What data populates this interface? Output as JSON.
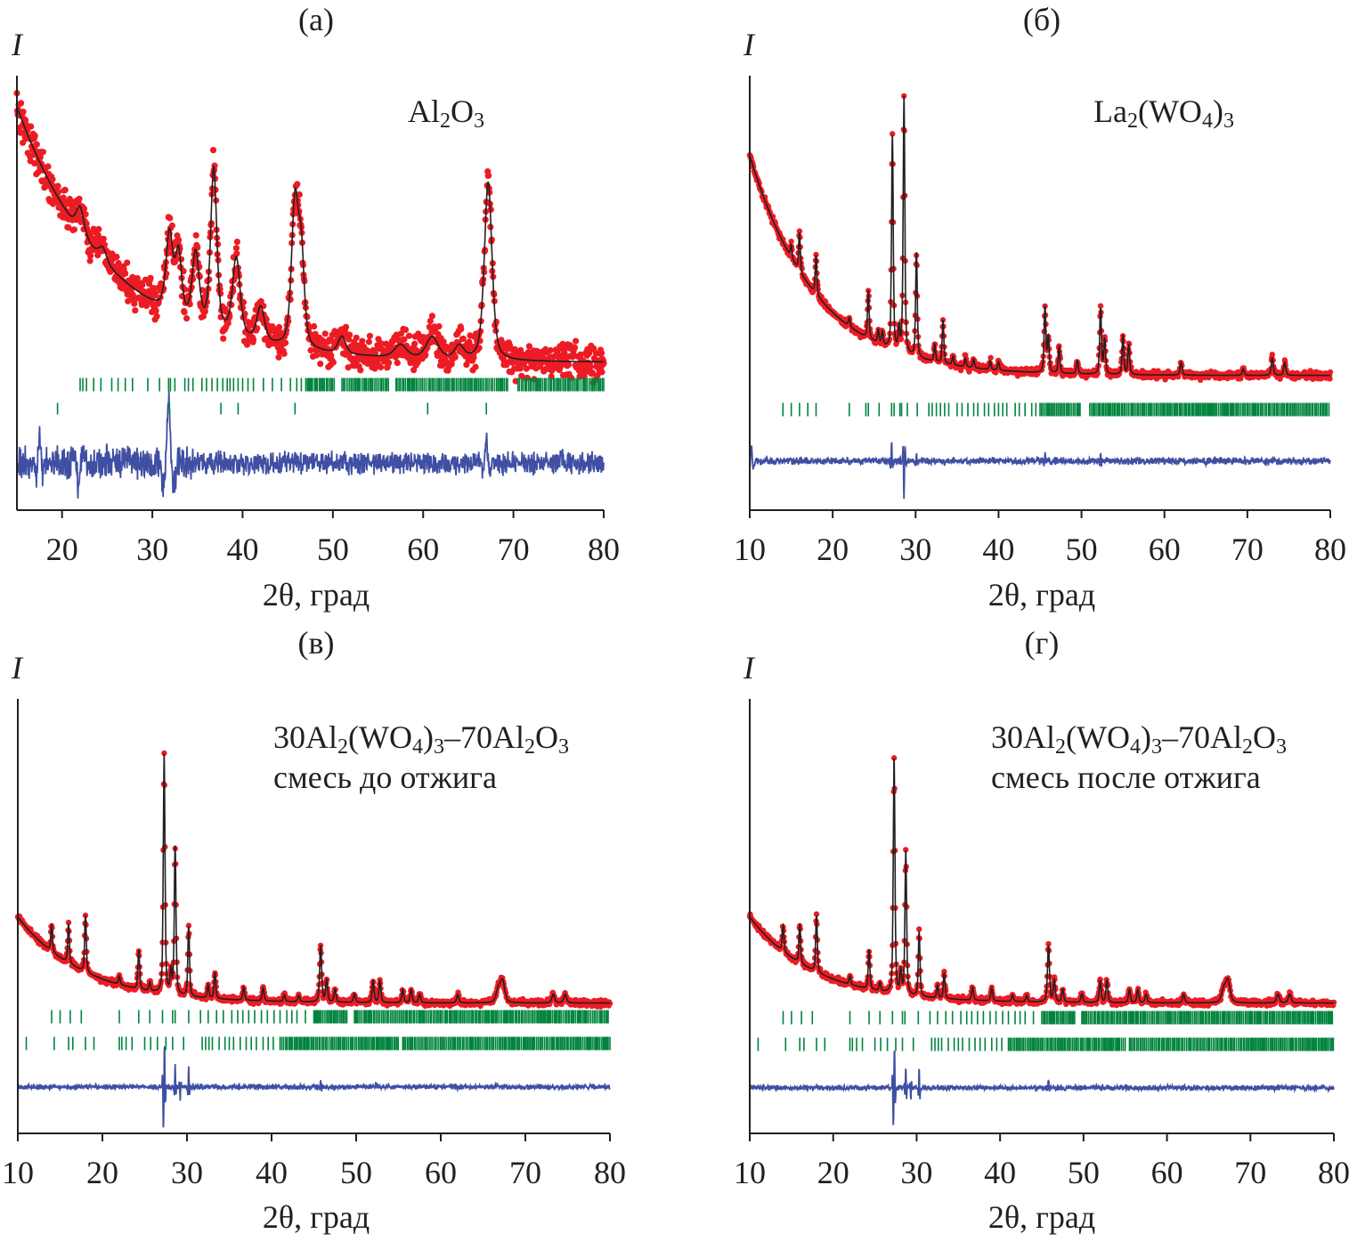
{
  "chart_data": [
    {
      "type": "line",
      "panel": "(а)",
      "title": "(а)",
      "ylabel": "I",
      "xlabel": "2θ, град",
      "label_lines": [
        "Al2O3"
      ],
      "xlim": [
        15,
        80
      ],
      "xticks": [
        20,
        30,
        40,
        50,
        60,
        70,
        80
      ],
      "background": {
        "c": 34,
        "a": 58.8,
        "x0": 15,
        "t": 10.3
      },
      "peaks": [
        [
          22,
          6,
          0.5
        ],
        [
          24.5,
          3,
          0.5
        ],
        [
          31.9,
          18,
          0.45
        ],
        [
          32.9,
          14,
          0.4
        ],
        [
          34.8,
          16,
          0.45
        ],
        [
          36.8,
          37,
          0.4
        ],
        [
          39.3,
          18,
          0.5
        ],
        [
          42,
          8,
          0.5
        ],
        [
          45.8,
          33,
          0.45
        ],
        [
          46.5,
          20,
          0.4
        ],
        [
          51,
          4,
          0.5
        ],
        [
          57.5,
          3,
          0.8
        ],
        [
          61,
          5,
          0.8
        ],
        [
          64,
          3,
          0.6
        ],
        [
          67.2,
          41,
          0.5
        ]
      ],
      "obs_noise": 2.4,
      "difference": {
        "baseline": 10.9,
        "noise": 1.6,
        "features": [
          [
            17.5,
            5,
            0.3
          ],
          [
            21.8,
            -5,
            0.4
          ],
          [
            31.8,
            14,
            0.45
          ],
          [
            67,
            6,
            0.3
          ]
        ]
      },
      "tick_rows": [
        {
          "positions": [
            22,
            22.3,
            22.7,
            23.5,
            24.3,
            25.5,
            26.2,
            27,
            27.8,
            29.5,
            30.8,
            31.8,
            32,
            32.5,
            33.6,
            34,
            34.5,
            35.5,
            36,
            36.6,
            37.2,
            37.8,
            38.3,
            38.6,
            39,
            39.5,
            40,
            40.6,
            41.2,
            42.3,
            43.3,
            44.3,
            45.3,
            46,
            46.5
          ],
          "dense_ranges": [
            [
              47,
              50.2
            ],
            [
              51,
              56.2
            ],
            [
              57,
              69.5
            ],
            [
              70.5,
              80
            ]
          ]
        },
        {
          "positions": [
            19.5,
            31.9,
            37.6,
            39.5,
            45.8,
            60.5,
            67
          ],
          "dense_ranges": []
        }
      ]
    },
    {
      "type": "line",
      "panel": "(б)",
      "title": "(б)",
      "ylabel": "I",
      "xlabel": "2θ, град",
      "label_lines": [
        "La2(WO4)3"
      ],
      "xlim": [
        10,
        80
      ],
      "xticks": [
        10,
        20,
        30,
        40,
        50,
        60,
        70,
        80
      ],
      "background": {
        "c": 31,
        "a": 50.6,
        "x0": 10,
        "t": 8
      },
      "peaks": [
        [
          15,
          3,
          0.12
        ],
        [
          16,
          9,
          0.12
        ],
        [
          18,
          9,
          0.12
        ],
        [
          22,
          2,
          0.12
        ],
        [
          24.3,
          11,
          0.12
        ],
        [
          25.5,
          3,
          0.12
        ],
        [
          26,
          3,
          0.12
        ],
        [
          27.2,
          49,
          0.12
        ],
        [
          28,
          5,
          0.12
        ],
        [
          28.6,
          59,
          0.12
        ],
        [
          30.1,
          24,
          0.12
        ],
        [
          32.3,
          4,
          0.12
        ],
        [
          33.3,
          10,
          0.12
        ],
        [
          34.5,
          2,
          0.12
        ],
        [
          36,
          2,
          0.12
        ],
        [
          37,
          2,
          0.12
        ],
        [
          39,
          2,
          0.12
        ],
        [
          40,
          2,
          0.12
        ],
        [
          45.6,
          15,
          0.13
        ],
        [
          46,
          8,
          0.13
        ],
        [
          47.3,
          6,
          0.13
        ],
        [
          49.5,
          3,
          0.13
        ],
        [
          52.3,
          15,
          0.13
        ],
        [
          52.8,
          8,
          0.13
        ],
        [
          55,
          9,
          0.13
        ],
        [
          55.7,
          7,
          0.13
        ],
        [
          62,
          3,
          0.14
        ],
        [
          69.5,
          1.5,
          0.14
        ],
        [
          73,
          4,
          0.15
        ],
        [
          74.5,
          3,
          0.15
        ]
      ],
      "obs_noise": 0.5,
      "difference": {
        "baseline": 11.3,
        "noise": 0.5,
        "features": [
          [
            10.2,
            4,
            0.2
          ],
          [
            27.1,
            4,
            0.1
          ],
          [
            28.6,
            -9,
            0.1
          ],
          [
            30.1,
            2,
            0.1
          ],
          [
            45.6,
            2,
            0.1
          ],
          [
            52.3,
            2,
            0.1
          ]
        ]
      },
      "tick_rows": [
        {
          "positions": [
            14,
            15,
            16,
            17,
            18,
            22,
            24,
            24.3,
            25.6,
            27.1,
            27.4,
            28.1,
            28.3,
            29,
            30.2,
            31.6,
            32,
            32.5,
            33,
            33.5,
            34,
            35,
            35.6,
            36.3,
            37,
            37.5,
            38.3,
            38.8,
            39.5,
            40,
            40.5,
            41,
            42,
            42.5,
            43.2,
            44,
            44.5
          ],
          "dense_ranges": [
            [
              45,
              50
            ],
            [
              51,
              80
            ]
          ]
        }
      ]
    },
    {
      "type": "line",
      "panel": "(в)",
      "title": "(в)",
      "ylabel": "I",
      "xlabel": "2θ, град",
      "label_lines": [
        "30Al2(WO4)3–70Al2O3",
        "смесь до отжига"
      ],
      "xlim": [
        10,
        80
      ],
      "xticks": [
        10,
        20,
        30,
        40,
        50,
        60,
        70,
        80
      ],
      "background": {
        "c": 30,
        "a": 19.8,
        "x0": 10,
        "t": 7.8
      },
      "peaks": [
        [
          14,
          6,
          0.12
        ],
        [
          16,
          9,
          0.12
        ],
        [
          18,
          13,
          0.12
        ],
        [
          22,
          2,
          0.12
        ],
        [
          24.3,
          9,
          0.12
        ],
        [
          25.6,
          2,
          0.12
        ],
        [
          27.3,
          55,
          0.12
        ],
        [
          28.1,
          5,
          0.12
        ],
        [
          28.6,
          34,
          0.12
        ],
        [
          30.2,
          16,
          0.12
        ],
        [
          32.5,
          3,
          0.12
        ],
        [
          33.3,
          6,
          0.12
        ],
        [
          36.7,
          3,
          0.13
        ],
        [
          39,
          3,
          0.13
        ],
        [
          41.5,
          1.5,
          0.13
        ],
        [
          43.2,
          1.5,
          0.13
        ],
        [
          45.8,
          13,
          0.14
        ],
        [
          46.5,
          5,
          0.14
        ],
        [
          47.5,
          3,
          0.14
        ],
        [
          49.8,
          2,
          0.14
        ],
        [
          52,
          5,
          0.14
        ],
        [
          52.8,
          5,
          0.14
        ],
        [
          55.5,
          3,
          0.14
        ],
        [
          56.5,
          3,
          0.14
        ],
        [
          57.5,
          2,
          0.14
        ],
        [
          62,
          2,
          0.15
        ],
        [
          66.8,
          3,
          0.3
        ],
        [
          67.3,
          5,
          0.3
        ],
        [
          73.3,
          2,
          0.2
        ],
        [
          74.7,
          2,
          0.2
        ]
      ],
      "obs_noise": 0.4,
      "difference": {
        "baseline": 10.7,
        "noise": 0.35,
        "features": [
          [
            27.2,
            -8,
            0.08
          ],
          [
            27.35,
            9,
            0.08
          ],
          [
            28.6,
            5,
            0.08
          ],
          [
            29.2,
            -3,
            0.08
          ],
          [
            30.2,
            5,
            0.08
          ],
          [
            45.8,
            1.5,
            0.1
          ],
          [
            52.3,
            1,
            0.1
          ]
        ]
      },
      "tick_rows": [
        {
          "positions": [
            14,
            15,
            16.2,
            17.5,
            22,
            24.3,
            25.6,
            27.1,
            28.3,
            28.6,
            30.2,
            31.6,
            32.5,
            33.5,
            34.3,
            35.3,
            36,
            36.6,
            37.3,
            38,
            38.8,
            39.5,
            40.3,
            41,
            41.8,
            42.4,
            43,
            44
          ],
          "dense_ranges": [
            [
              45,
              49
            ],
            [
              49.8,
              80
            ]
          ]
        },
        {
          "positions": [
            11,
            14.3,
            16,
            16.5,
            18,
            19,
            22,
            22.3,
            22.8,
            23.5,
            25,
            25.7,
            26.5,
            27.5,
            28.3,
            29.6,
            31.8,
            32.2,
            32.6,
            33,
            33.8,
            34.5,
            35,
            35.5,
            36.3,
            37,
            37.6,
            38.2,
            39,
            39.6,
            40.2
          ],
          "dense_ranges": [
            [
              41,
              55
            ],
            [
              55.5,
              80
            ]
          ]
        }
      ]
    },
    {
      "type": "line",
      "panel": "(г)",
      "title": "(г)",
      "ylabel": "I",
      "xlabel": "2θ, град",
      "label_lines": [
        "30Al2(WO4)3–70Al2O3",
        "смесь после отжига"
      ],
      "xlim": [
        10,
        80
      ],
      "xticks": [
        10,
        20,
        30,
        40,
        50,
        60,
        70,
        80
      ],
      "background": {
        "c": 30,
        "a": 19.8,
        "x0": 10,
        "t": 7.8
      },
      "peaks": [
        [
          14,
          6,
          0.12
        ],
        [
          16,
          9,
          0.12
        ],
        [
          18,
          13,
          0.12
        ],
        [
          22,
          2,
          0.12
        ],
        [
          24.3,
          9,
          0.12
        ],
        [
          25.6,
          2,
          0.12
        ],
        [
          27.3,
          54,
          0.12
        ],
        [
          28.1,
          5,
          0.12
        ],
        [
          28.7,
          33,
          0.12
        ],
        [
          30.3,
          15,
          0.12
        ],
        [
          32.5,
          3,
          0.12
        ],
        [
          33.3,
          6,
          0.12
        ],
        [
          36.7,
          3,
          0.13
        ],
        [
          39,
          3,
          0.13
        ],
        [
          41.5,
          1.5,
          0.13
        ],
        [
          43.2,
          1.5,
          0.13
        ],
        [
          45.8,
          13,
          0.14
        ],
        [
          46.5,
          5,
          0.14
        ],
        [
          47.5,
          3,
          0.14
        ],
        [
          49.8,
          2,
          0.14
        ],
        [
          52,
          5,
          0.14
        ],
        [
          52.8,
          5,
          0.14
        ],
        [
          55.5,
          3,
          0.14
        ],
        [
          56.5,
          3,
          0.14
        ],
        [
          57.5,
          2,
          0.14
        ],
        [
          62,
          2,
          0.15
        ],
        [
          66.8,
          3,
          0.3
        ],
        [
          67.3,
          5,
          0.3
        ],
        [
          73.3,
          2,
          0.2
        ],
        [
          74.7,
          2,
          0.2
        ]
      ],
      "obs_noise": 0.4,
      "difference": {
        "baseline": 10.5,
        "noise": 0.35,
        "features": [
          [
            27.2,
            -8,
            0.08
          ],
          [
            27.35,
            9,
            0.08
          ],
          [
            28.7,
            5,
            0.08
          ],
          [
            29.3,
            -3,
            0.08
          ],
          [
            30.3,
            5,
            0.08
          ],
          [
            45.8,
            1.5,
            0.1
          ],
          [
            52.3,
            1,
            0.1
          ]
        ]
      },
      "tick_rows": [
        {
          "positions": [
            14,
            15,
            16.2,
            17.5,
            22,
            24.3,
            25.6,
            27.1,
            28.3,
            28.6,
            30.2,
            31.6,
            32.5,
            33.5,
            34.3,
            35.3,
            36,
            36.6,
            37.3,
            38,
            38.8,
            39.5,
            40.3,
            41,
            41.8,
            42.4,
            43,
            44
          ],
          "dense_ranges": [
            [
              45,
              49
            ],
            [
              49.8,
              80
            ]
          ]
        },
        {
          "positions": [
            11,
            14.3,
            16,
            16.5,
            18,
            19,
            22,
            22.3,
            22.8,
            23.5,
            25,
            25.7,
            26.5,
            27.5,
            28.3,
            29.6,
            31.8,
            32.2,
            32.6,
            33,
            33.8,
            34.5,
            35,
            35.5,
            36.3,
            37,
            37.6,
            38.2,
            39,
            39.6,
            40.2
          ],
          "dense_ranges": [
            [
              41,
              55
            ],
            [
              55.5,
              80
            ]
          ]
        }
      ]
    }
  ],
  "colors": {
    "observed": "#ed1c24",
    "calculated": "#231f20",
    "difference": "#3f4fa3",
    "reflections": "#00843d",
    "axis": "#231f20"
  }
}
